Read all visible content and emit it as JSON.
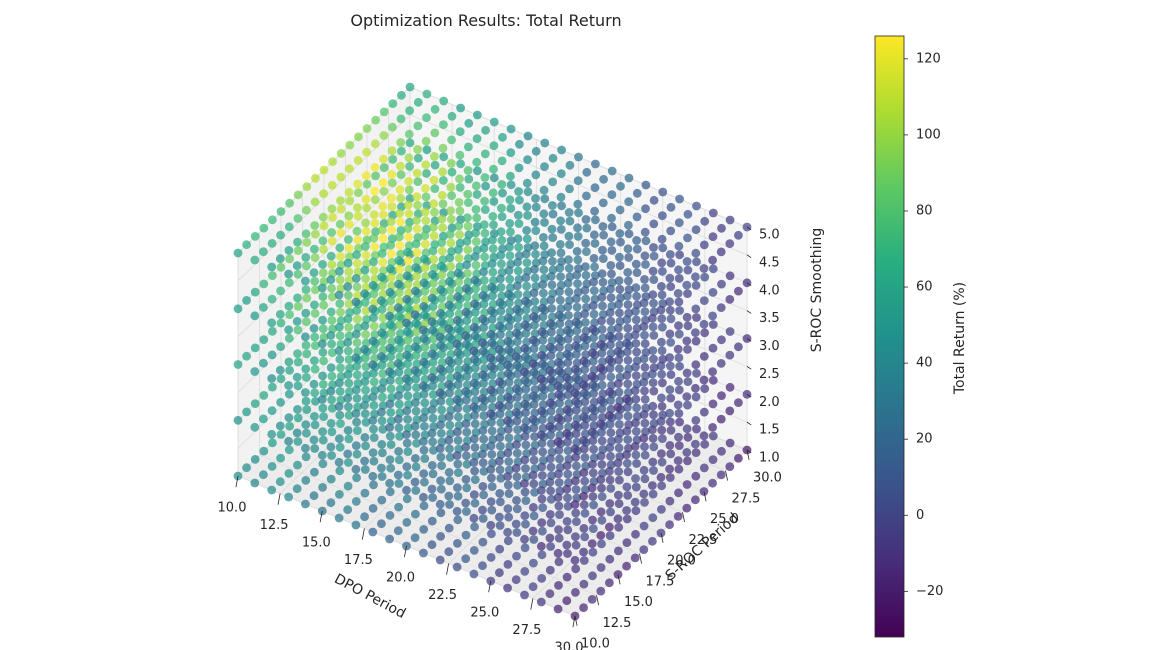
{
  "chart_data": {
    "type": "scatter",
    "title": "Optimization Results: Total Return",
    "xlabel": "DPO Period",
    "ylabel": "S-ROC Period",
    "zlabel": "S-ROC Smoothing",
    "colorbar_label": "Total Return (%)",
    "colormap": "viridis",
    "x_ticks": [
      "10.0",
      "12.5",
      "15.0",
      "17.5",
      "20.0",
      "22.5",
      "25.0",
      "27.5",
      "30.0"
    ],
    "y_ticks": [
      "10.0",
      "12.5",
      "15.0",
      "17.5",
      "20.0",
      "22.5",
      "25.0",
      "27.5",
      "30.0"
    ],
    "z_ticks": [
      "1.0",
      "1.5",
      "2.0",
      "2.5",
      "3.0",
      "3.5",
      "4.0",
      "4.5",
      "5.0"
    ],
    "colorbar_ticks": [
      "120",
      "100",
      "80",
      "60",
      "40",
      "20",
      "0",
      "−20"
    ],
    "x_range": [
      10,
      30
    ],
    "y_range": [
      10,
      30
    ],
    "z_range": [
      1,
      5
    ],
    "color_range": [
      -32,
      126
    ],
    "x_values": [
      10,
      11,
      12,
      13,
      14,
      15,
      16,
      17,
      18,
      19,
      20,
      21,
      22,
      23,
      24,
      25,
      26,
      27,
      28,
      29,
      30
    ],
    "y_values": [
      10,
      11,
      12,
      13,
      14,
      15,
      16,
      17,
      18,
      19,
      20,
      21,
      22,
      23,
      24,
      25,
      26,
      27,
      28,
      29,
      30
    ],
    "z_values": [
      1,
      2,
      3,
      4,
      5
    ],
    "grid": true,
    "legend": "colorbar-right"
  },
  "colors": {
    "background": "#ffffff",
    "pane": "#f2f2f2",
    "grid": "#e0e0e0",
    "text": "#262626"
  }
}
